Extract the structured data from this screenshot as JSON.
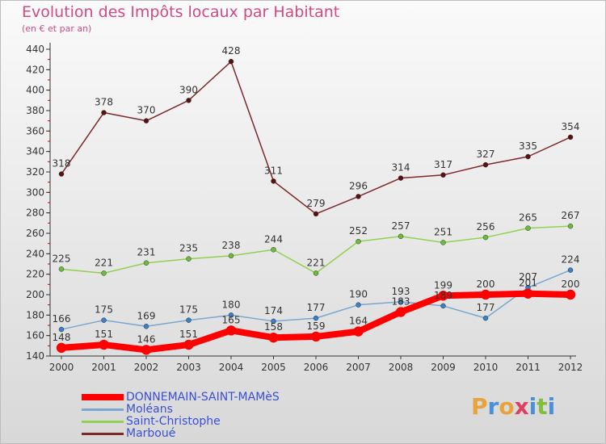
{
  "title": "Evolution des Impôts locaux par Habitant",
  "subtitle": "(en € et par an)",
  "logo": {
    "letters": [
      "P",
      "r",
      "o",
      "x",
      "i",
      "t",
      "i"
    ],
    "colors": [
      "#e8a33c",
      "#4a90d9",
      "#e8a33c",
      "#e04060",
      "#4a90d9",
      "#7fbf3f",
      "#4a90d9"
    ]
  },
  "chart_data": {
    "type": "line",
    "x": [
      "2000",
      "2001",
      "2002",
      "2003",
      "2004",
      "2005",
      "2006",
      "2007",
      "2008",
      "2009",
      "2010",
      "2011",
      "2012"
    ],
    "yticks": [
      140,
      160,
      180,
      200,
      220,
      240,
      260,
      280,
      300,
      320,
      340,
      360,
      380,
      400,
      420,
      440
    ],
    "ylim": [
      140,
      440
    ],
    "grid": false,
    "legend_position": "bottom-left",
    "series": [
      {
        "name": "DONNEMAIN-SAINT-MAMèS",
        "color": "#ff0000",
        "marker": "#ff0000",
        "width": 8,
        "values": [
          148,
          151,
          146,
          151,
          165,
          158,
          159,
          164,
          183,
          199,
          200,
          201,
          200
        ],
        "labels": [
          "148",
          "151",
          "146",
          "151",
          "165",
          "158",
          "159",
          "164",
          "183",
          "199",
          "200",
          "201",
          "200"
        ]
      },
      {
        "name": "Moléans",
        "color": "#7aa7cf",
        "marker": "#3b7fc4",
        "width": 1.5,
        "values": [
          166,
          175,
          169,
          175,
          180,
          174,
          177,
          190,
          193,
          189,
          177,
          207,
          224
        ],
        "labels": [
          "166",
          "175",
          "169",
          "175",
          "180",
          "174",
          "177",
          "190",
          "193",
          "189",
          "177",
          "207",
          "224"
        ]
      },
      {
        "name": "Saint-Christophe",
        "color": "#92d050",
        "marker": "#6cbb3c",
        "width": 1.5,
        "values": [
          225,
          221,
          231,
          235,
          238,
          244,
          221,
          252,
          257,
          251,
          256,
          265,
          267
        ],
        "labels": [
          "225",
          "221",
          "231",
          "235",
          "238",
          "244",
          "221",
          "252",
          "257",
          "251",
          "256",
          "265",
          "267"
        ]
      },
      {
        "name": "Marboué",
        "color": "#7b2a2a",
        "marker": "#5a1010",
        "width": 1.5,
        "values": [
          318,
          378,
          370,
          390,
          428,
          311,
          279,
          296,
          314,
          317,
          327,
          335,
          354
        ],
        "labels": [
          "318",
          "378",
          "370",
          "390",
          "428",
          "311",
          "279",
          "296",
          "314",
          "317",
          "327",
          "335",
          "354"
        ]
      }
    ]
  }
}
